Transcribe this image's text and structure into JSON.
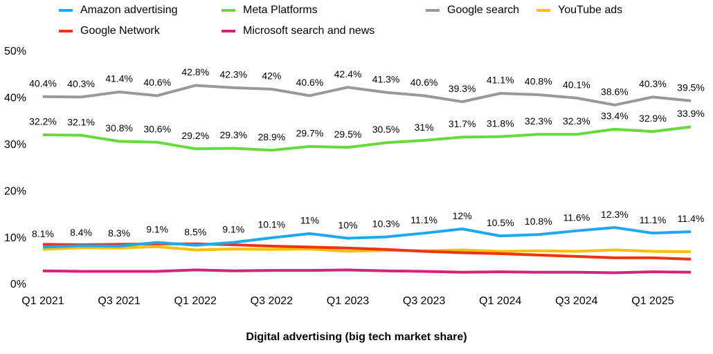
{
  "chart_data": {
    "type": "line",
    "x_label": "Digital advertising (big tech market share)",
    "categories": [
      "Q1 2021",
      null,
      "Q3 2021",
      null,
      "Q1 2022",
      null,
      "Q3 2022",
      null,
      "Q1 2023",
      null,
      "Q3 2023",
      null,
      "Q1 2024",
      null,
      "Q3 2024",
      null,
      "Q1 2025",
      null
    ],
    "ylim": [
      0,
      50
    ],
    "yticks": [
      {
        "value": 0,
        "label": "0%"
      },
      {
        "value": 10,
        "label": "10%"
      },
      {
        "value": 20,
        "label": "20%"
      },
      {
        "value": 30,
        "label": "30%"
      },
      {
        "value": 40,
        "label": "40%"
      },
      {
        "value": 50,
        "label": "50%"
      }
    ],
    "series": [
      {
        "name": "Amazon advertising",
        "color": "#1ea8f0",
        "values": [
          8.1,
          8.4,
          8.3,
          9.1,
          8.5,
          9.1,
          10.1,
          11,
          10,
          10.3,
          11.1,
          12,
          10.5,
          10.8,
          11.6,
          12.3,
          11.1,
          11.4
        ],
        "value_labels": [
          "8.1%",
          "8.4%",
          "8.3%",
          "9.1%",
          "8.5%",
          "9.1%",
          "10.1%",
          "11%",
          "10%",
          "10.3%",
          "11.1%",
          "12%",
          "10.5%",
          "10.8%",
          "11.6%",
          "12.3%",
          "11.1%",
          "11.4%"
        ]
      },
      {
        "name": "Meta Platforms",
        "color": "#66d93d",
        "values": [
          32.2,
          32.1,
          30.8,
          30.6,
          29.2,
          29.3,
          28.9,
          29.7,
          29.5,
          30.5,
          31,
          31.7,
          31.8,
          32.3,
          32.3,
          33.4,
          32.9,
          33.9
        ],
        "value_labels": [
          "32.2%",
          "32.1%",
          "30.8%",
          "30.6%",
          "29.2%",
          "29.3%",
          "28.9%",
          "29.7%",
          "29.5%",
          "30.5%",
          "31%",
          "31.7%",
          "31.8%",
          "32.3%",
          "32.3%",
          "33.4%",
          "32.9%",
          "33.9%"
        ]
      },
      {
        "name": "Google search",
        "color": "#999999",
        "values": [
          40.4,
          40.3,
          41.4,
          40.6,
          42.8,
          42.3,
          42,
          40.6,
          42.4,
          41.3,
          40.6,
          39.3,
          41.1,
          40.8,
          40.1,
          38.6,
          40.3,
          39.5
        ],
        "value_labels": [
          "40.4%",
          "40.3%",
          "41.4%",
          "40.6%",
          "42.8%",
          "42.3%",
          "42%",
          "40.6%",
          "42.4%",
          "41.3%",
          "40.6%",
          "39.3%",
          "41.1%",
          "40.8%",
          "40.1%",
          "38.6%",
          "40.3%",
          "39.5%"
        ]
      },
      {
        "name": "YouTube ads",
        "color": "#f5c000",
        "values": [
          7.6,
          8.0,
          7.9,
          8.2,
          7.5,
          7.7,
          7.6,
          7.7,
          7.2,
          7.4,
          7.3,
          7.5,
          7.2,
          7.3,
          7.2,
          7.5,
          7.2,
          7.1
        ]
      },
      {
        "name": "Google Network",
        "color": "#ee3311",
        "values": [
          8.7,
          8.6,
          8.7,
          8.8,
          8.8,
          8.6,
          8.3,
          8.1,
          7.9,
          7.6,
          7.2,
          6.9,
          6.7,
          6.4,
          6.1,
          5.8,
          5.8,
          5.5
        ]
      },
      {
        "name": "Microsoft search and news",
        "color": "#d3237a",
        "values": [
          3.0,
          2.9,
          2.9,
          2.9,
          3.2,
          3.0,
          3.1,
          3.1,
          3.2,
          3.0,
          2.9,
          2.7,
          2.8,
          2.7,
          2.7,
          2.6,
          2.8,
          2.7
        ]
      }
    ]
  }
}
